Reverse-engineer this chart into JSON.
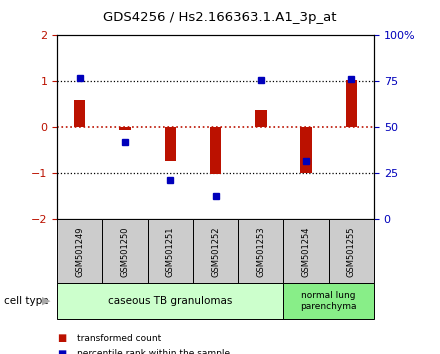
{
  "title": "GDS4256 / Hs2.166363.1.A1_3p_at",
  "samples": [
    "GSM501249",
    "GSM501250",
    "GSM501251",
    "GSM501252",
    "GSM501253",
    "GSM501254",
    "GSM501255"
  ],
  "transformed_counts": [
    0.6,
    -0.05,
    -0.72,
    -1.02,
    0.38,
    -1.0,
    1.02
  ],
  "percentile_y": [
    1.08,
    -0.32,
    -1.15,
    -1.5,
    1.02,
    -0.72,
    1.05
  ],
  "ylim": [
    -2,
    2
  ],
  "y2lim": [
    0,
    100
  ],
  "yticks": [
    -2,
    -1,
    0,
    1,
    2
  ],
  "y2ticks": [
    0,
    25,
    50,
    75,
    100
  ],
  "y2ticklabels": [
    "0",
    "25",
    "50",
    "75",
    "100%"
  ],
  "bar_color": "#bb1100",
  "dot_color": "#0000bb",
  "group1_label": "caseous TB granulomas",
  "group2_label": "normal lung\nparenchyma",
  "group1_bg": "#ccffcc",
  "group2_bg": "#88ee88",
  "sample_box_bg": "#cccccc",
  "legend_red": "transformed count",
  "legend_blue": "percentile rank within the sample",
  "cell_type_label": "cell type",
  "bg_color": "#ffffff"
}
